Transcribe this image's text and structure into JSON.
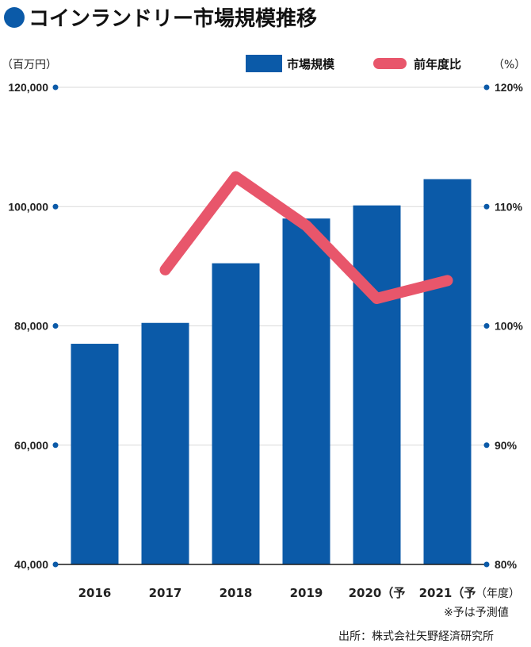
{
  "chart_data": {
    "type": "bar+line",
    "title": "コインランドリー市場規模推移",
    "left_unit": "（百万円）",
    "right_unit": "（%）",
    "x_unit": "（年度）",
    "categories": [
      "2016",
      "2017",
      "2018",
      "2019",
      "2020（予",
      "2021（予"
    ],
    "y_left": {
      "min": 40000,
      "max": 120000,
      "ticks": [
        "40,000",
        "60,000",
        "80,000",
        "100,000",
        "120,000"
      ]
    },
    "y_right": {
      "min": 80,
      "max": 120,
      "ticks": [
        "80%",
        "90%",
        "100%",
        "110%",
        "120%"
      ]
    },
    "series": [
      {
        "name": "市場規模",
        "type": "bar",
        "axis": "left",
        "color": "#0b5aa8",
        "values": [
          77000,
          80500,
          90500,
          98000,
          100200,
          104600
        ]
      },
      {
        "name": "前年度比",
        "type": "line",
        "axis": "right",
        "color": "#e8566b",
        "values": [
          null,
          104.7,
          112.5,
          108.4,
          102.3,
          103.8
        ]
      }
    ],
    "grid": true,
    "legend": "top-right",
    "notes": [
      "※予は予測値",
      "出所：株式会社矢野経済研究所"
    ]
  }
}
